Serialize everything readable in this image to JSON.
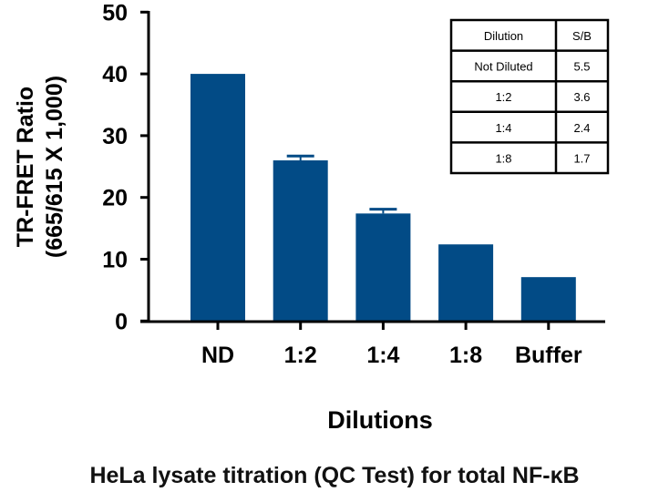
{
  "chart_data": {
    "type": "bar",
    "categories": [
      "ND",
      "1:2",
      "1:4",
      "1:8",
      "Buffer"
    ],
    "values": [
      40.0,
      26.0,
      17.4,
      12.4,
      7.1
    ],
    "error_upper": [
      null,
      26.7,
      18.1,
      null,
      null
    ],
    "ylabel_line1": "TR-FRET Ratio",
    "ylabel_line2": "(665/615 X 1,000)",
    "xlabel": "Dilutions",
    "ylim": [
      0,
      50
    ],
    "yticks": [
      0,
      10,
      20,
      30,
      40,
      50
    ],
    "grid": false,
    "bar_color": "#024b86",
    "caption": "HeLa lysate titration (QC Test) for total NF-κB",
    "inset_table": {
      "headers": [
        "Dilution",
        "S/B"
      ],
      "rows": [
        [
          "Not Diluted",
          "5.5"
        ],
        [
          "1:2",
          "3.6"
        ],
        [
          "1:4",
          "2.4"
        ],
        [
          "1:8",
          "1.7"
        ]
      ]
    }
  }
}
